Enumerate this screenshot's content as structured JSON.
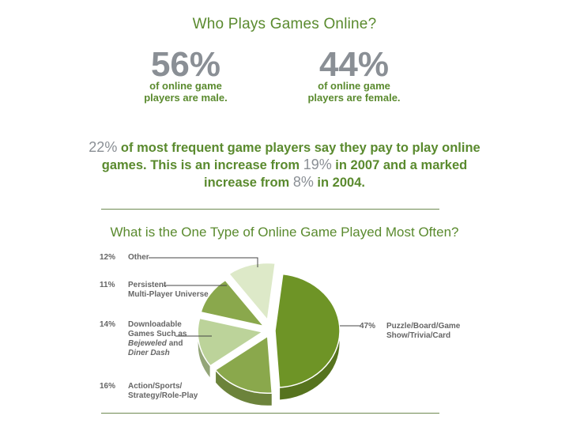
{
  "title": "Who Plays Games Online?",
  "male": {
    "value": "56%",
    "line1": "of online game",
    "line2": "players are male."
  },
  "female": {
    "value": "44%",
    "line1": "of online game",
    "line2": "players are female."
  },
  "paragraph": {
    "p1": "22%",
    "t1": " of most frequent game players say they pay to play online games. This is an increase from ",
    "p2": "19%",
    "t2": " in 2007 and a marked increase from ",
    "p3": "8%",
    "t3": " in 2004."
  },
  "chart_data": {
    "type": "pie",
    "title": "What is the One Type of Online Game Played Most Often?",
    "slices": [
      {
        "label": "Puzzle/Board/Game Show/Trivia/Card",
        "value": 47,
        "pct_label": "47%",
        "color": "#6e9426"
      },
      {
        "label": "Action/Sports/Strategy/Role-Play",
        "value": 16,
        "pct_label": "16%",
        "color": "#8aa84c"
      },
      {
        "label": "Downloadable Games Such as Bejeweled and Diner Dash",
        "value": 14,
        "pct_label": "14%",
        "color": "#bcd39a"
      },
      {
        "label": "Persistent Multi-Player Universe",
        "value": 11,
        "pct_label": "11%",
        "color": "#8aa84c"
      },
      {
        "label": "Other",
        "value": 12,
        "pct_label": "12%",
        "color": "#dde9c8"
      }
    ]
  },
  "labels": {
    "other": {
      "pct": "12%",
      "line1": "Other"
    },
    "persistent": {
      "pct": "11%",
      "line1": "Persistent",
      "line2": "Multi-Player Universe"
    },
    "download": {
      "pct": "14%",
      "line1": "Downloadable",
      "line2": "Games Such as",
      "line3a": "Bejeweled",
      "line3b": " and",
      "line4": "Diner Dash"
    },
    "action": {
      "pct": "16%",
      "line1": "Action/Sports/",
      "line2": "Strategy/Role-Play"
    },
    "puzzle": {
      "pct": "47%",
      "line1": "Puzzle/Board/Game",
      "line2": "Show/Trivia/Card"
    }
  }
}
